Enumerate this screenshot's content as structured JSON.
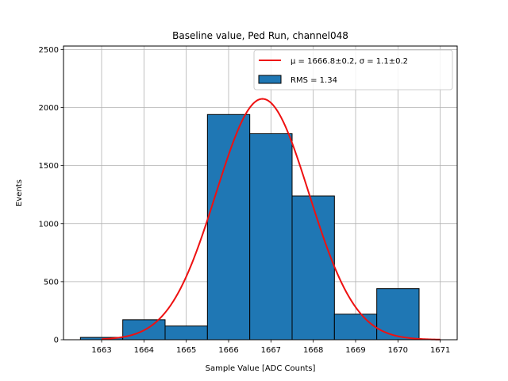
{
  "chart_data": {
    "type": "bar",
    "title": "Baseline value, Ped Run, channel048",
    "xlabel": "Sample Value [ADC Counts]",
    "ylabel": "Events",
    "xlim": [
      1662.1,
      1671.4
    ],
    "ylim": [
      0,
      2530
    ],
    "xticks": [
      "1663",
      "1664",
      "1665",
      "1666",
      "1667",
      "1668",
      "1669",
      "1670",
      "1671"
    ],
    "yticks": [
      "0",
      "500",
      "1000",
      "1500",
      "2000",
      "2500"
    ],
    "grid": true,
    "legend_position": "top-right",
    "bin_width": 1,
    "bins": [
      {
        "center": 1663,
        "value": 20
      },
      {
        "center": 1664,
        "value": 172
      },
      {
        "center": 1665,
        "value": 118
      },
      {
        "center": 1666,
        "value": 1940
      },
      {
        "center": 1667,
        "value": 1775
      },
      {
        "center": 1668,
        "value": 1238
      },
      {
        "center": 1669,
        "value": 220
      },
      {
        "center": 1670,
        "value": 440
      }
    ],
    "fit": {
      "mu": 1666.8,
      "sigma": 1.1,
      "amplitude": 2075,
      "x_range": [
        1663,
        1671
      ]
    },
    "legend": {
      "fit_label": "μ = 1666.8±0.2, σ = 1.1±0.2",
      "hist_label": "RMS = 1.34"
    },
    "colors": {
      "bar": "#1f77b4",
      "bar_edge": "#000000",
      "fit": "#ee1111",
      "grid": "#b0b0b0"
    }
  }
}
